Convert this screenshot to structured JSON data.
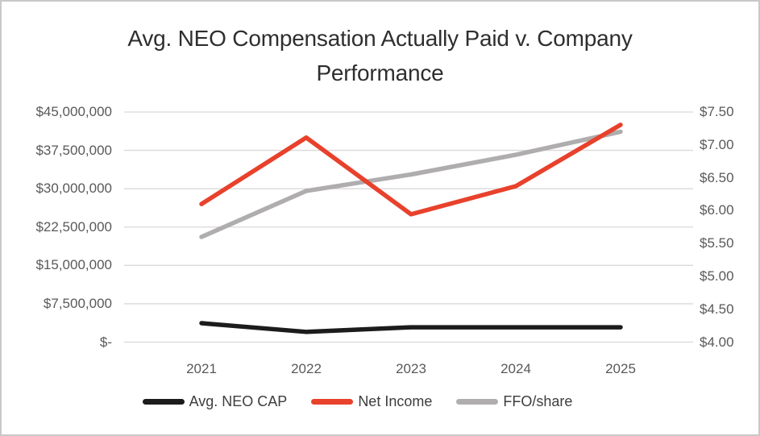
{
  "chart_data": {
    "type": "line",
    "title": "Avg. NEO Compensation Actually Paid v. Company Performance",
    "categories": [
      "2021",
      "2022",
      "2023",
      "2024",
      "2025"
    ],
    "series": [
      {
        "name": "Avg. NEO CAP",
        "axis": "left",
        "color": "#1c1c1c",
        "values": [
          3700000,
          2000000,
          2900000,
          2900000,
          2900000
        ]
      },
      {
        "name": "Net Income",
        "axis": "left",
        "color": "#e8412c",
        "values": [
          27000000,
          40000000,
          25000000,
          30500000,
          42500000
        ]
      },
      {
        "name": "FFO/share",
        "axis": "right",
        "color": "#afadad",
        "values": [
          5.6,
          6.3,
          6.55,
          6.85,
          7.2
        ]
      }
    ],
    "left_axis": {
      "min": 0,
      "max": 45000000,
      "tick_labels": [
        "$-",
        "$7,500,000",
        "$15,000,000",
        "$22,500,000",
        "$30,000,000",
        "$37,500,000",
        "$45,000,000"
      ]
    },
    "right_axis": {
      "min": 4.0,
      "max": 7.5,
      "tick_labels": [
        "$4.00",
        "$4.50",
        "$5.00",
        "$5.50",
        "$6.00",
        "$6.50",
        "$7.00",
        "$7.50"
      ]
    },
    "grid": true,
    "gridline_color": "#d9d9d9",
    "legend_position": "bottom"
  }
}
